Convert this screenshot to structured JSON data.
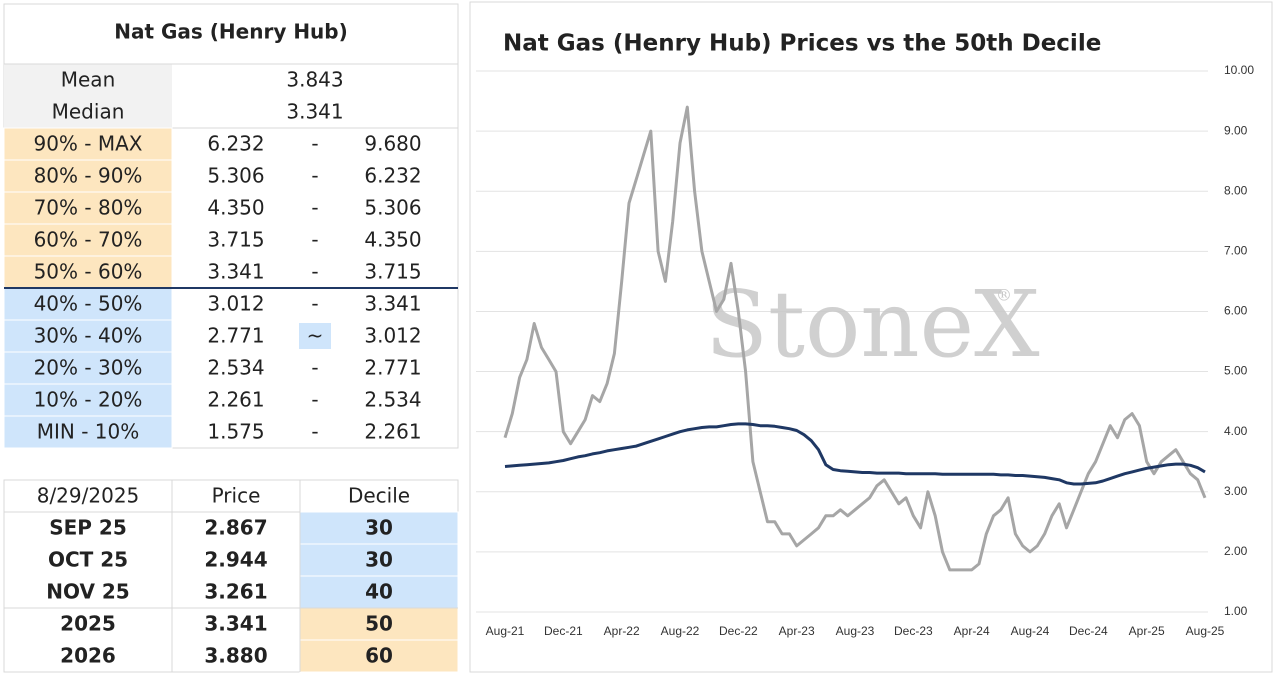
{
  "stats_table": {
    "title": "Nat Gas (Henry Hub)",
    "summary": [
      {
        "label": "Mean",
        "value": "3.843"
      },
      {
        "label": "Median",
        "value": "3.341"
      }
    ],
    "deciles": [
      {
        "label": "90% - MAX",
        "low": "6.232",
        "sep": "-",
        "high": "9.680",
        "color": "#fde6bf"
      },
      {
        "label": "80% - 90%",
        "low": "5.306",
        "sep": "-",
        "high": "6.232",
        "color": "#fde6bf"
      },
      {
        "label": "70% - 80%",
        "low": "4.350",
        "sep": "-",
        "high": "5.306",
        "color": "#fde6bf"
      },
      {
        "label": "60% - 70%",
        "low": "3.715",
        "sep": "-",
        "high": "4.350",
        "color": "#fde6bf"
      },
      {
        "label": "50% - 60%",
        "low": "3.341",
        "sep": "-",
        "high": "3.715",
        "color": "#fde6bf"
      },
      {
        "label": "40% - 50%",
        "low": "3.012",
        "sep": "-",
        "high": "3.341",
        "color": "#cfe5fb"
      },
      {
        "label": "30% - 40%",
        "low": "2.771",
        "sep": "~",
        "high": "3.012",
        "color": "#cfe5fb",
        "sep_color": "#cfe5fb"
      },
      {
        "label": "20% - 30%",
        "low": "2.534",
        "sep": "-",
        "high": "2.771",
        "color": "#cfe5fb"
      },
      {
        "label": "10% - 20%",
        "low": "2.261",
        "sep": "-",
        "high": "2.534",
        "color": "#cfe5fb"
      },
      {
        "label": "MIN - 10%",
        "low": "1.575",
        "sep": "-",
        "high": "2.261",
        "color": "#cfe5fb"
      }
    ]
  },
  "price_table": {
    "header": [
      "8/29/2025",
      "Price",
      "Decile"
    ],
    "rows": [
      {
        "contract": "SEP 25",
        "price": "2.867",
        "decile": "30",
        "color": "#cfe5fb"
      },
      {
        "contract": "OCT 25",
        "price": "2.944",
        "decile": "30",
        "color": "#cfe5fb"
      },
      {
        "contract": "NOV 25",
        "price": "3.261",
        "decile": "40",
        "color": "#cfe5fb"
      },
      {
        "contract": "2025",
        "price": "3.341",
        "decile": "50",
        "color": "#fde6bf"
      },
      {
        "contract": "2026",
        "price": "3.880",
        "decile": "60",
        "color": "#fde6bf"
      }
    ]
  },
  "chart_data": {
    "type": "line",
    "title": "Nat Gas (Henry Hub) Prices vs the 50th Decile",
    "watermark": "StoneX",
    "watermark_mark": "®",
    "categories": [
      "Aug-21",
      null,
      null,
      null,
      null,
      null,
      null,
      null,
      "Dec-21",
      null,
      null,
      null,
      null,
      null,
      null,
      null,
      "Apr-22",
      null,
      null,
      null,
      null,
      null,
      null,
      null,
      "Aug-22",
      null,
      null,
      null,
      null,
      null,
      null,
      null,
      "Dec-22",
      null,
      null,
      null,
      null,
      null,
      null,
      null,
      "Apr-23",
      null,
      null,
      null,
      null,
      null,
      null,
      null,
      "Aug-23",
      null,
      null,
      null,
      null,
      null,
      null,
      null,
      "Dec-23",
      null,
      null,
      null,
      null,
      null,
      null,
      null,
      "Apr-24",
      null,
      null,
      null,
      null,
      null,
      null,
      null,
      "Aug-24",
      null,
      null,
      null,
      null,
      null,
      null,
      null,
      "Dec-24",
      null,
      null,
      null,
      null,
      null,
      null,
      null,
      "Apr-25",
      null,
      null,
      null,
      null,
      null,
      null,
      null,
      "Aug-25"
    ],
    "series": [
      {
        "color": "#a6a6a6",
        "values": [
          3.9,
          4.3,
          4.9,
          5.2,
          5.8,
          5.4,
          5.2,
          5.0,
          4.0,
          3.8,
          4.0,
          4.2,
          4.6,
          4.5,
          4.8,
          5.3,
          6.5,
          7.8,
          8.2,
          8.6,
          9.0,
          7.0,
          6.5,
          7.5,
          8.8,
          9.4,
          8.0,
          7.0,
          6.5,
          6.0,
          6.2,
          6.8,
          6.0,
          5.0,
          3.5,
          3.0,
          2.5,
          2.5,
          2.3,
          2.3,
          2.1,
          2.2,
          2.3,
          2.4,
          2.6,
          2.6,
          2.7,
          2.6,
          2.7,
          2.8,
          2.9,
          3.1,
          3.2,
          3.0,
          2.8,
          2.9,
          2.6,
          2.4,
          3.0,
          2.6,
          2.0,
          1.7,
          1.7,
          1.7,
          1.7,
          1.8,
          2.3,
          2.6,
          2.7,
          2.9,
          2.3,
          2.1,
          2.0,
          2.1,
          2.3,
          2.6,
          2.8,
          2.4,
          2.7,
          3.0,
          3.3,
          3.5,
          3.8,
          4.1,
          3.9,
          4.2,
          4.3,
          4.1,
          3.5,
          3.3,
          3.5,
          3.6,
          3.7,
          3.5,
          3.3,
          3.2,
          2.9
        ]
      },
      {
        "color": "#1f3864",
        "values": [
          3.42,
          3.43,
          3.44,
          3.45,
          3.46,
          3.47,
          3.48,
          3.5,
          3.52,
          3.55,
          3.58,
          3.6,
          3.63,
          3.65,
          3.68,
          3.7,
          3.72,
          3.74,
          3.76,
          3.8,
          3.84,
          3.88,
          3.92,
          3.96,
          4.0,
          4.03,
          4.05,
          4.07,
          4.08,
          4.08,
          4.1,
          4.12,
          4.13,
          4.13,
          4.12,
          4.1,
          4.1,
          4.09,
          4.07,
          4.05,
          4.02,
          3.95,
          3.85,
          3.7,
          3.45,
          3.37,
          3.35,
          3.34,
          3.33,
          3.32,
          3.32,
          3.31,
          3.31,
          3.31,
          3.31,
          3.3,
          3.3,
          3.3,
          3.3,
          3.3,
          3.29,
          3.29,
          3.29,
          3.29,
          3.29,
          3.29,
          3.29,
          3.29,
          3.28,
          3.28,
          3.27,
          3.27,
          3.26,
          3.25,
          3.24,
          3.22,
          3.2,
          3.15,
          3.13,
          3.13,
          3.14,
          3.15,
          3.18,
          3.22,
          3.26,
          3.3,
          3.33,
          3.36,
          3.39,
          3.41,
          3.43,
          3.45,
          3.46,
          3.46,
          3.44,
          3.4,
          3.33
        ]
      }
    ],
    "ylim": [
      1,
      10
    ],
    "yticks": [
      {
        "value": 1,
        "label": "1.00"
      },
      {
        "value": 2,
        "label": "2.00"
      },
      {
        "value": 3,
        "label": "3.00"
      },
      {
        "value": 4,
        "label": "4.00"
      },
      {
        "value": 5,
        "label": "5.00"
      },
      {
        "value": 6,
        "label": "6.00"
      },
      {
        "value": 7,
        "label": "7.00"
      },
      {
        "value": 8,
        "label": "8.00"
      },
      {
        "value": 9,
        "label": "9.00"
      },
      {
        "value": 10,
        "label": "10.00"
      }
    ],
    "grid": true
  }
}
